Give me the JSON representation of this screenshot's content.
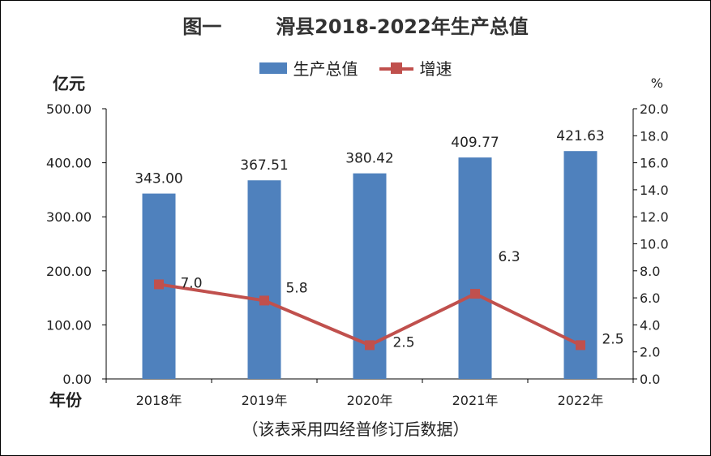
{
  "chart_data": {
    "type": "bar",
    "title": "图一        滑县2018-2022年生产总值",
    "categories": [
      "2018年",
      "2019年",
      "2020年",
      "2021年",
      "2022年"
    ],
    "series": [
      {
        "name": "生产总值",
        "type": "bar",
        "axis": "left",
        "values": [
          343.0,
          367.51,
          380.42,
          409.77,
          421.63
        ],
        "labels": [
          "343.00",
          "367.51",
          "380.42",
          "409.77",
          "421.63"
        ],
        "color": "#4f81bd"
      },
      {
        "name": "增速",
        "type": "line",
        "axis": "right",
        "values": [
          7.0,
          5.8,
          2.5,
          6.3,
          2.5
        ],
        "labels": [
          "7.0",
          "5.8",
          "2.5",
          "6.3",
          "2.5"
        ],
        "color": "#c0504d"
      }
    ],
    "y_left": {
      "unit": "亿元",
      "ylim": [
        0,
        500
      ],
      "ticks": [
        "0.00",
        "100.00",
        "200.00",
        "300.00",
        "400.00",
        "500.00"
      ]
    },
    "y_right": {
      "unit": "%",
      "ylim": [
        0,
        20
      ],
      "ticks": [
        "0.0",
        "2.0",
        "4.0",
        "6.0",
        "8.0",
        "10.0",
        "12.0",
        "14.0",
        "16.0",
        "18.0",
        "20.0"
      ]
    },
    "xlabel": "年份",
    "legend_position": "top",
    "grid": false,
    "note": "（该表采用四经普修订后数据）"
  }
}
